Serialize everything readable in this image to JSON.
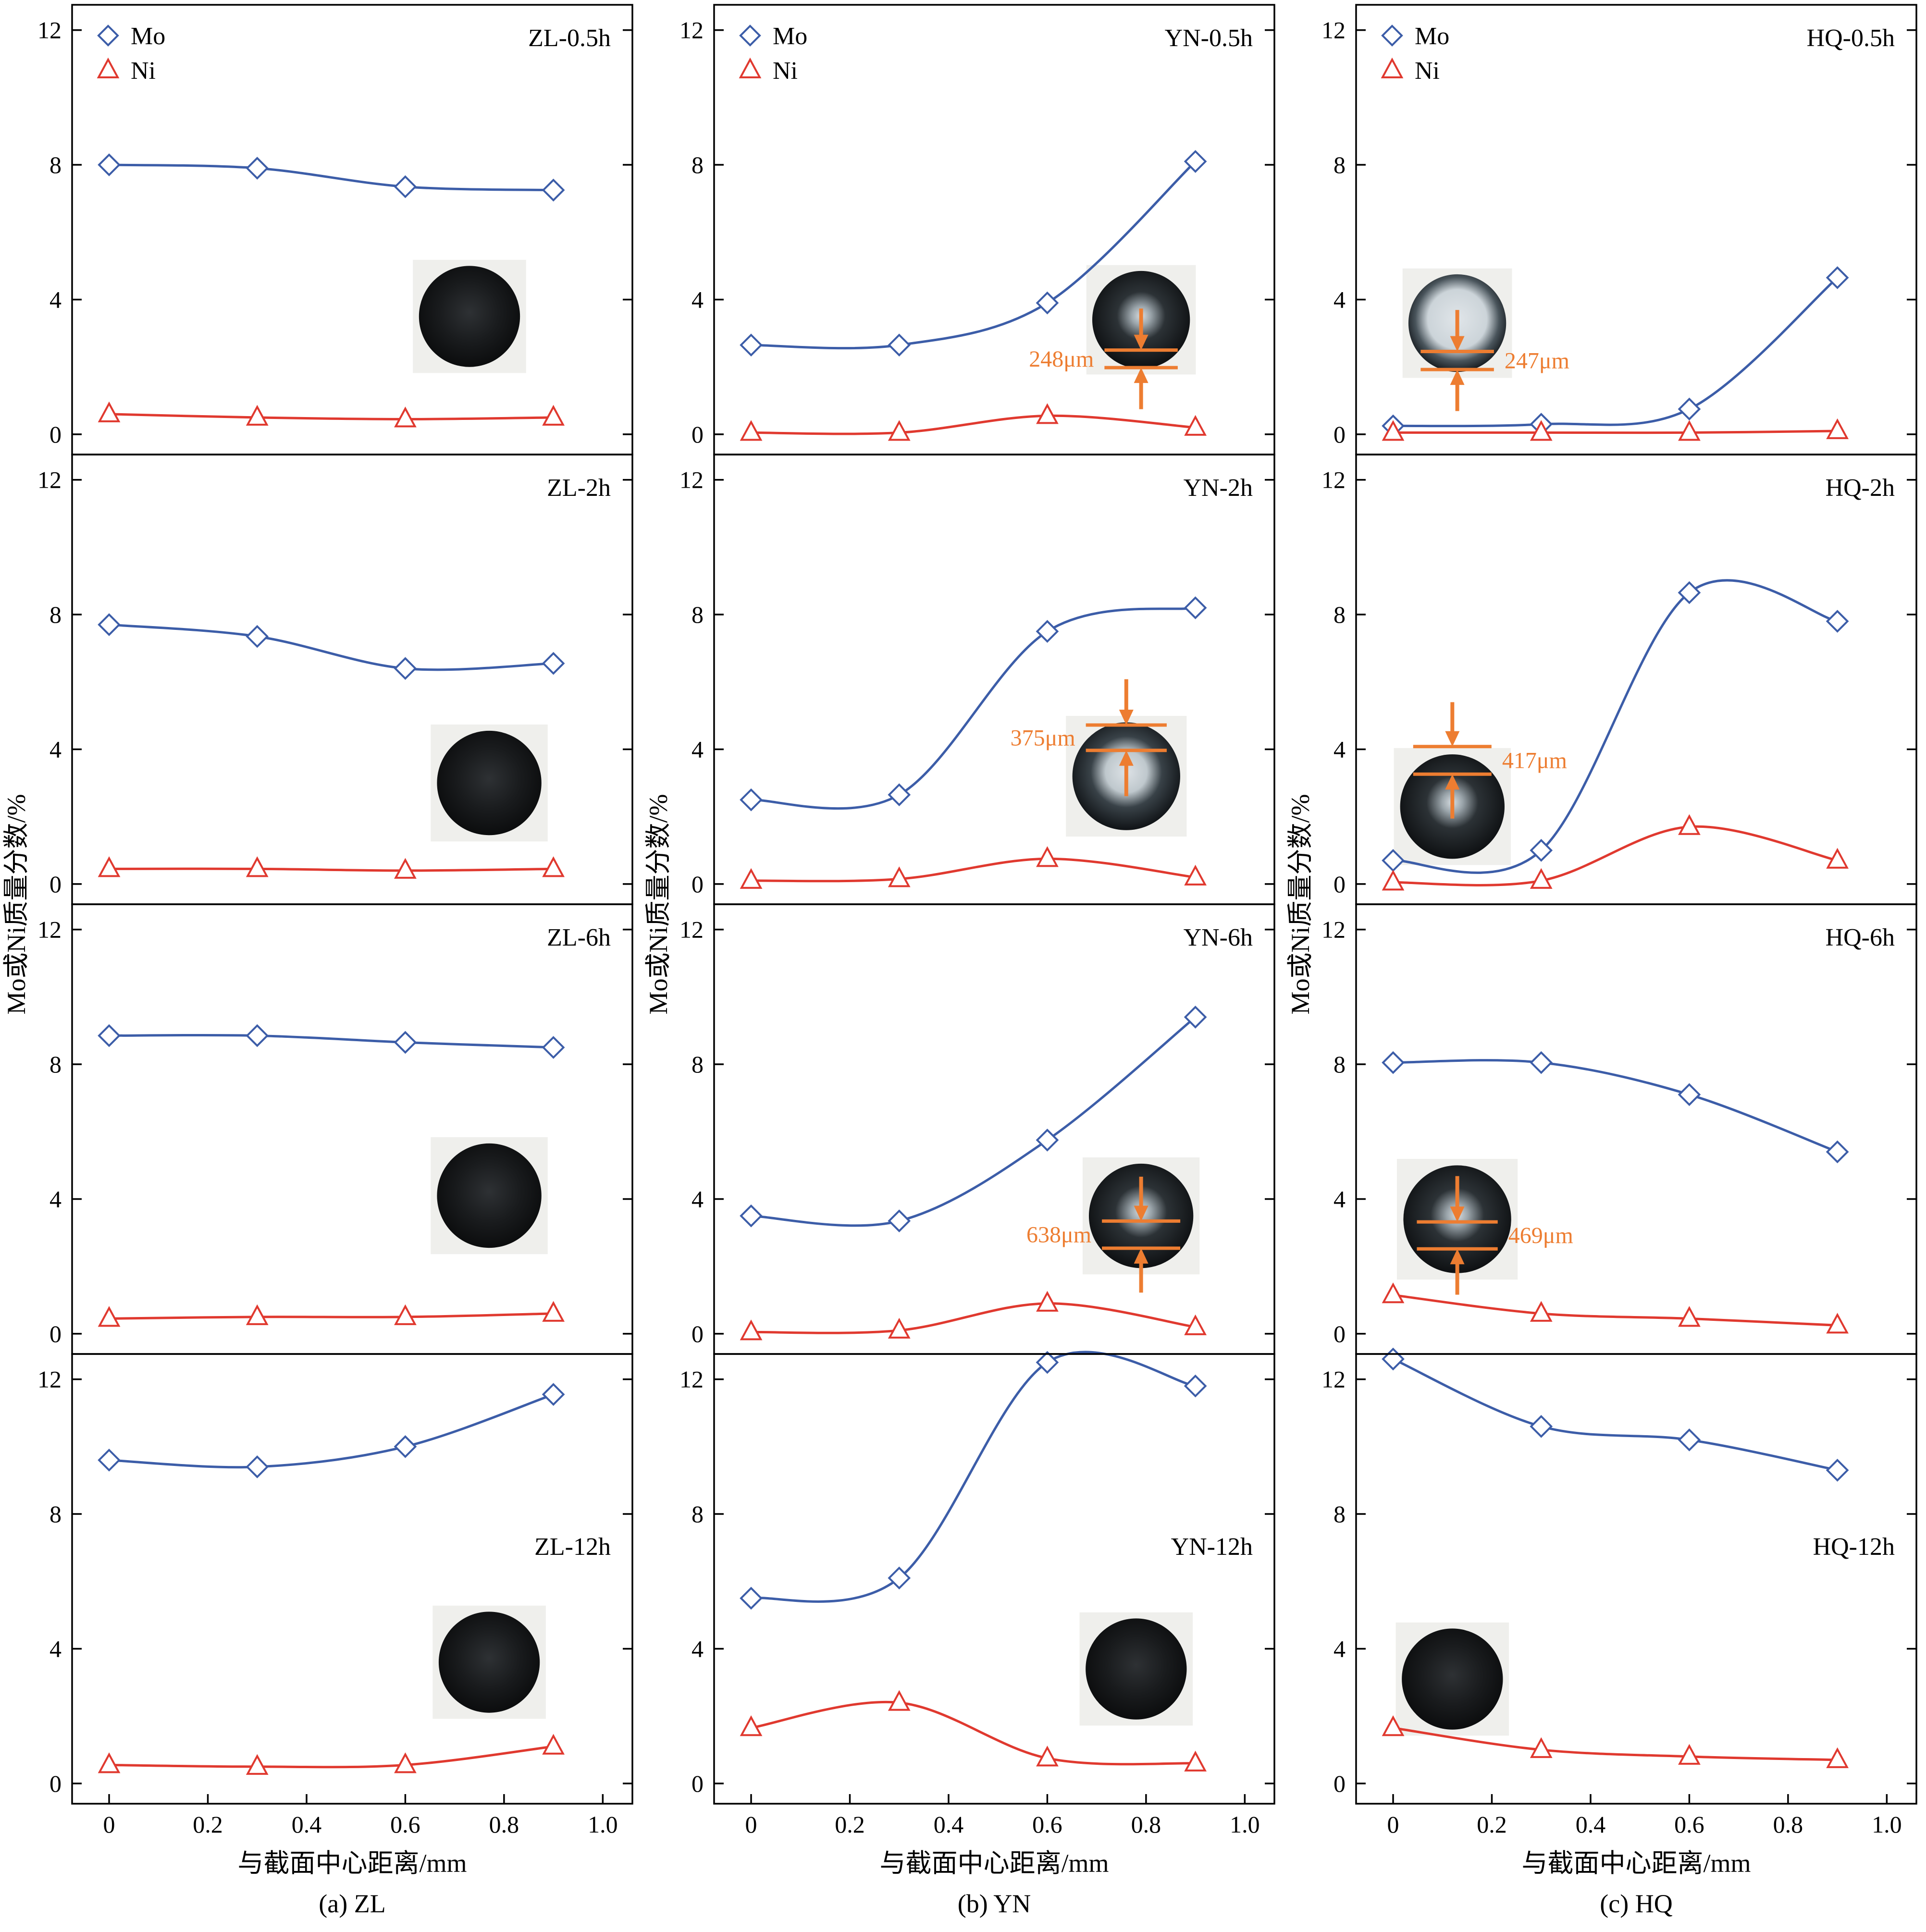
{
  "figure": {
    "ylabel": "Mo或Ni质量分数/%",
    "xlabel": "与截面中心距离/mm",
    "legend": {
      "mo": "Mo",
      "ni": "Ni"
    },
    "colors": {
      "mo": "#3c5da8",
      "ni": "#e0392f",
      "annotation": "#ed7d31",
      "axis": "#000000"
    },
    "x_tick_values": [
      0,
      0.2,
      0.4,
      0.6,
      0.8,
      1.0
    ],
    "x_tick_labels": [
      "0",
      "0.2",
      "0.4",
      "0.6",
      "0.8",
      "1.0"
    ],
    "y_tick_values": [
      0,
      4,
      8,
      12
    ],
    "y_tick_labels": [
      "0",
      "4",
      "8",
      "12"
    ]
  },
  "chart_data": {
    "type": "line",
    "x": [
      0,
      0.3,
      0.6,
      0.9
    ],
    "xlabel": "与截面中心距离/mm",
    "ylabel": "Mo或Ni质量分数/%",
    "xlim": [
      0,
      1.0
    ],
    "ylim": [
      0,
      12
    ],
    "legend": [
      "Mo",
      "Ni"
    ],
    "columns": [
      {
        "id": "ZL",
        "caption": "(a) ZL",
        "panels": [
          {
            "label": "ZL-0.5h",
            "label_pos": "top",
            "legend": true,
            "mo": [
              8.0,
              7.9,
              7.35,
              7.25
            ],
            "ni": [
              0.6,
              0.5,
              0.45,
              0.5
            ],
            "inset": {
              "cx": 0.73,
              "cy": 3.5,
              "r": 1.5,
              "style": "dark",
              "annotation": null
            }
          },
          {
            "label": "ZL-2h",
            "label_pos": "top",
            "legend": false,
            "mo": [
              7.7,
              7.35,
              6.4,
              6.55
            ],
            "ni": [
              0.45,
              0.45,
              0.4,
              0.45
            ],
            "inset": {
              "cx": 0.77,
              "cy": 3.0,
              "r": 1.55,
              "style": "dark",
              "annotation": null
            }
          },
          {
            "label": "ZL-6h",
            "label_pos": "top",
            "legend": false,
            "mo": [
              8.85,
              8.85,
              8.65,
              8.5
            ],
            "ni": [
              0.45,
              0.5,
              0.5,
              0.6
            ],
            "inset": {
              "cx": 0.77,
              "cy": 4.1,
              "r": 1.55,
              "style": "dark",
              "annotation": null
            }
          },
          {
            "label": "ZL-12h",
            "label_pos": "middle",
            "legend": false,
            "mo": [
              9.6,
              9.4,
              10.0,
              11.55
            ],
            "ni": [
              0.55,
              0.5,
              0.55,
              1.1
            ],
            "inset": {
              "cx": 0.77,
              "cy": 3.6,
              "r": 1.5,
              "style": "dark",
              "annotation": null
            }
          }
        ]
      },
      {
        "id": "YN",
        "caption": "(b) YN",
        "panels": [
          {
            "label": "YN-0.5h",
            "label_pos": "top",
            "legend": true,
            "mo": [
              2.65,
              2.65,
              3.9,
              8.1
            ],
            "ni": [
              0.05,
              0.05,
              0.55,
              0.2
            ],
            "inset": {
              "cx": 0.79,
              "cy": 3.4,
              "r": 1.45,
              "style": "halo-small",
              "annotation": {
                "label": "248μm",
                "side": "left",
                "l1": 0.62,
                "l2": 0.98
              }
            }
          },
          {
            "label": "YN-2h",
            "label_pos": "top",
            "legend": false,
            "mo": [
              2.5,
              2.65,
              7.5,
              8.2
            ],
            "ni": [
              0.1,
              0.15,
              0.75,
              0.2
            ],
            "inset": {
              "cx": 0.76,
              "cy": 3.2,
              "r": 1.6,
              "style": "halo",
              "annotation": {
                "label": "375μm",
                "side": "left",
                "l1": -0.95,
                "l2": -0.48
              }
            }
          },
          {
            "label": "YN-6h",
            "label_pos": "top",
            "legend": false,
            "mo": [
              3.5,
              3.35,
              5.75,
              9.4
            ],
            "ni": [
              0.05,
              0.1,
              0.9,
              0.2
            ],
            "inset": {
              "cx": 0.79,
              "cy": 3.5,
              "r": 1.55,
              "style": "halo-small",
              "annotation": {
                "label": "638μm",
                "side": "left",
                "l1": 0.1,
                "l2": 0.62
              }
            }
          },
          {
            "label": "YN-12h",
            "label_pos": "middle",
            "legend": false,
            "mo": [
              5.5,
              6.1,
              12.5,
              11.8
            ],
            "ni": [
              1.65,
              2.4,
              0.75,
              0.6
            ],
            "inset": {
              "cx": 0.78,
              "cy": 3.4,
              "r": 1.5,
              "style": "dark",
              "annotation": null
            }
          }
        ]
      },
      {
        "id": "HQ",
        "caption": "(c) HQ",
        "panels": [
          {
            "label": "HQ-0.5h",
            "label_pos": "top",
            "legend": true,
            "mo": [
              0.25,
              0.3,
              0.75,
              4.65
            ],
            "ni": [
              0.05,
              0.05,
              0.05,
              0.1
            ],
            "inset": {
              "cx": 0.13,
              "cy": 3.3,
              "r": 1.45,
              "style": "halo-large",
              "annotation": {
                "label": "247μm",
                "side": "right",
                "l1": 0.58,
                "l2": 0.95
              }
            }
          },
          {
            "label": "HQ-2h",
            "label_pos": "top",
            "legend": false,
            "mo": [
              0.7,
              1.0,
              8.65,
              7.8
            ],
            "ni": [
              0.05,
              0.1,
              1.7,
              0.7
            ],
            "inset": {
              "cx": 0.12,
              "cy": 2.3,
              "r": 1.55,
              "style": "halo-small",
              "annotation": {
                "label": "417μm",
                "side": "right",
                "l1": -1.15,
                "l2": -0.62
              }
            }
          },
          {
            "label": "HQ-6h",
            "label_pos": "top",
            "legend": false,
            "mo": [
              8.05,
              8.05,
              7.1,
              5.4
            ],
            "ni": [
              1.15,
              0.6,
              0.45,
              0.25
            ],
            "inset": {
              "cx": 0.13,
              "cy": 3.4,
              "r": 1.6,
              "style": "halo-small",
              "annotation": {
                "label": "469μm",
                "side": "right",
                "l1": 0.05,
                "l2": 0.55
              }
            }
          },
          {
            "label": "HQ-12h",
            "label_pos": "middle",
            "legend": false,
            "mo": [
              12.6,
              10.6,
              10.2,
              9.3
            ],
            "ni": [
              1.65,
              1.0,
              0.8,
              0.7
            ],
            "inset": {
              "cx": 0.12,
              "cy": 3.1,
              "r": 1.5,
              "style": "dark",
              "annotation": null
            }
          }
        ]
      }
    ]
  }
}
